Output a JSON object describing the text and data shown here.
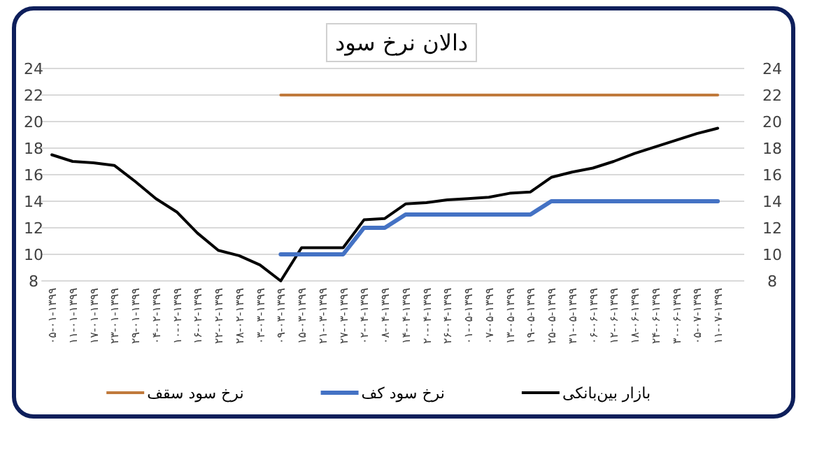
{
  "chart_data": {
    "type": "line",
    "title": "دالان نرخ سود",
    "categories": [
      "۰۵-۰۱-۱۳۹۹",
      "۱۱-۰۱-۱۳۹۹",
      "۱۷-۰۱-۱۳۹۹",
      "۲۳-۰۱-۱۳۹۹",
      "۲۹-۰۱-۱۳۹۹",
      "۰۴-۰۲-۱۳۹۹",
      "۱۰-۰۲-۱۳۹۹",
      "۱۶-۰۲-۱۳۹۹",
      "۲۲-۰۲-۱۳۹۹",
      "۲۸-۰۲-۱۳۹۹",
      "۰۳-۰۳-۱۳۹۹",
      "۰۹-۰۳-۱۳۹۹",
      "۱۵-۰۳-۱۳۹۹",
      "۲۱-۰۳-۱۳۹۹",
      "۲۷-۰۳-۱۳۹۹",
      "۰۲-۰۴-۱۳۹۹",
      "۰۸-۰۴-۱۳۹۹",
      "۱۴-۰۴-۱۳۹۹",
      "۲۰-۰۴-۱۳۹۹",
      "۲۶-۰۴-۱۳۹۹",
      "۰۱-۰۵-۱۳۹۹",
      "۰۷-۰۵-۱۳۹۹",
      "۱۳-۰۵-۱۳۹۹",
      "۱۹-۰۵-۱۳۹۹",
      "۲۵-۰۵-۱۳۹۹",
      "۳۱-۰۵-۱۳۹۹",
      "۰۶-۰۶-۱۳۹۹",
      "۱۲-۰۶-۱۳۹۹",
      "۱۸-۰۶-۱۳۹۹",
      "۲۴-۰۶-۱۳۹۹",
      "۳۰-۰۶-۱۳۹۹",
      "۰۵-۰۷-۱۳۹۹",
      "۱۱-۰۷-۱۳۹۹"
    ],
    "series": [
      {
        "name": "بازار بین‌بانکی",
        "color": "#000000",
        "values": [
          17.5,
          17.0,
          16.9,
          16.7,
          15.5,
          14.2,
          13.2,
          11.6,
          10.3,
          9.9,
          9.2,
          8.0,
          10.5,
          10.5,
          10.5,
          12.6,
          12.7,
          13.8,
          13.9,
          14.1,
          14.2,
          14.3,
          14.6,
          14.7,
          15.8,
          16.2,
          16.5,
          17.0,
          17.6,
          18.1,
          18.6,
          19.1,
          19.5
        ]
      },
      {
        "name": "نرخ سود کف",
        "color": "#4472c4",
        "values": [
          null,
          null,
          null,
          null,
          null,
          null,
          null,
          null,
          null,
          null,
          null,
          10,
          10,
          10,
          10,
          12,
          12,
          13,
          13,
          13,
          13,
          13,
          13,
          13,
          14,
          14,
          14,
          14,
          14,
          14,
          14,
          14,
          14
        ]
      },
      {
        "name": "نرخ سود سقف",
        "color": "#c07a3c",
        "values": [
          null,
          null,
          null,
          null,
          null,
          null,
          null,
          null,
          null,
          null,
          null,
          22,
          22,
          22,
          22,
          22,
          22,
          22,
          22,
          22,
          22,
          22,
          22,
          22,
          22,
          22,
          22,
          22,
          22,
          22,
          22,
          22,
          22
        ]
      }
    ],
    "ylim": [
      8,
      24
    ],
    "yticks": [
      8,
      10,
      12,
      14,
      16,
      18,
      20,
      22,
      24
    ],
    "y2lim": [
      8,
      24
    ],
    "y2ticks": [
      8,
      10,
      12,
      14,
      16,
      18,
      20,
      22,
      24
    ],
    "grid": "y",
    "legend": "bottom",
    "marker": "none",
    "line_style": "solid"
  }
}
